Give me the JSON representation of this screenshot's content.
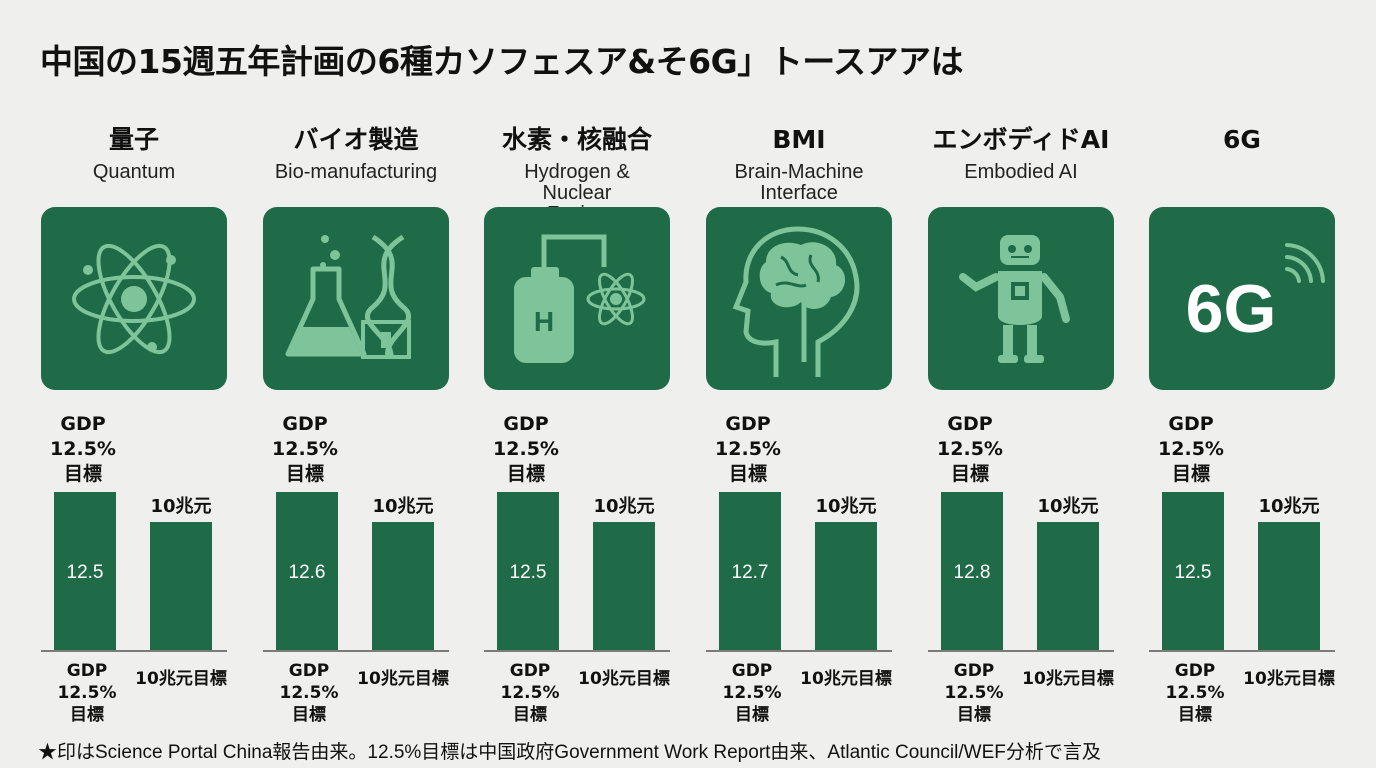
{
  "title": "中国の15週五年計画の6種カソフェスア&そ6G」トースアアは",
  "accent_color": "#1f6b48",
  "icon_light_color": "#7dc49a",
  "bar_color": "#1f6b48",
  "gdp_label_lines": [
    "GDP",
    "12.5%",
    "目標"
  ],
  "target_value_label": "10兆元",
  "bottom_left_lines": [
    "GDP",
    "12.5%",
    "目標"
  ],
  "bottom_right_label": "10兆元目標",
  "footnote": "★印はScience Portal China報告由来。12.5%目標は中国政府Government Work Report由来、Atlantic Council/WEF分析で言及",
  "columns": [
    {
      "name_ja": "量子",
      "name_en": "Quantum",
      "icon": "atom-icon"
    },
    {
      "name_ja": "バイオ製造",
      "name_en": "Bio-manufacturing",
      "icon": "flask-dna-icon"
    },
    {
      "name_ja": "水素・核融合",
      "name_en": "Hydrogen & Nuclear Fusion",
      "icon": "hydrogen-tank-icon"
    },
    {
      "name_ja": "BMI",
      "name_en": "Brain-Machine Interface",
      "icon": "brain-head-icon"
    },
    {
      "name_ja": "エンボディドAI",
      "name_en": "Embodied AI",
      "icon": "robot-icon"
    },
    {
      "name_ja": "6G",
      "name_en": "",
      "icon": "6g-signal-icon",
      "icon_text": "6G"
    }
  ],
  "chart_data": {
    "type": "bar",
    "categories": [
      "量子",
      "バイオ製造",
      "水素・核融合",
      "BMI",
      "エンボディドAI",
      "6G"
    ],
    "series_labels": [
      "GDP 12.5% 目標",
      "10兆元目標"
    ],
    "values": [
      [
        12.5,
        null
      ],
      [
        12.6,
        null
      ],
      [
        12.5,
        null
      ],
      [
        12.7,
        null
      ],
      [
        12.8,
        null
      ],
      [
        12.5,
        null
      ]
    ],
    "data_labels": [
      "12.5",
      "12.6",
      "12.5",
      "12.7",
      "12.8",
      "12.5"
    ],
    "second_bar_label": "10兆元",
    "relative_heights": [
      1.0,
      0.81
    ]
  }
}
